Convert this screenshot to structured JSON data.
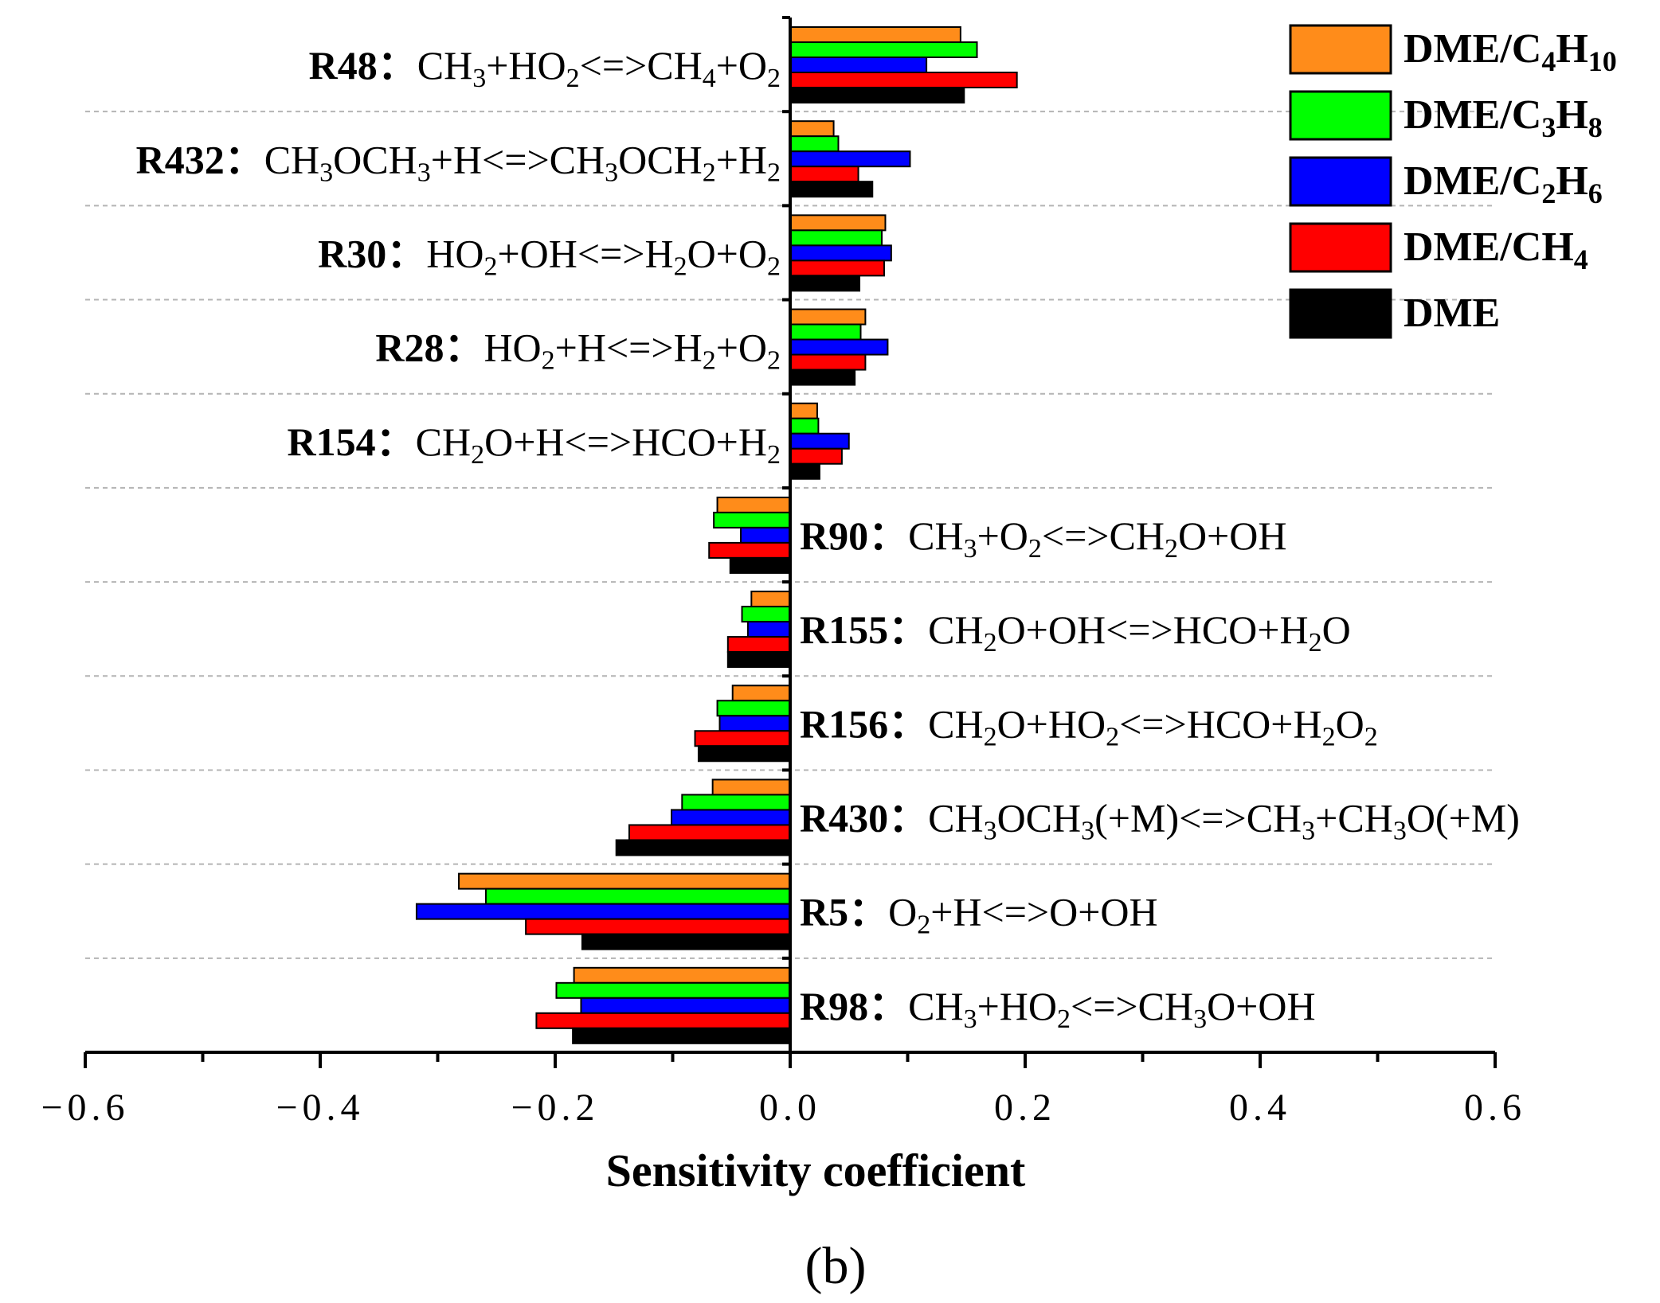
{
  "chart_data": {
    "type": "bar",
    "orientation": "horizontal",
    "xlabel": "Sensitivity coefficient",
    "caption": "(b)",
    "xlim": [
      -0.6,
      0.6
    ],
    "xticks": [
      -0.6,
      -0.4,
      -0.2,
      0.0,
      0.2,
      0.4,
      0.6
    ],
    "xtick_labels": [
      "−0.6",
      "−0.4",
      "−0.2",
      "0.0",
      "0.2",
      "0.4",
      "0.6"
    ],
    "grid": "horizontal dashed separators",
    "legend_position": "top-right",
    "categories": [
      {
        "id": "R48",
        "name": "R48",
        "sep": "：",
        "side": "left",
        "parts": [
          [
            "CH",
            ""
          ],
          [
            "3",
            "sub"
          ],
          [
            "+HO",
            ""
          ],
          [
            "2",
            "sub"
          ],
          [
            "<=>CH",
            ""
          ],
          [
            "4",
            "sub"
          ],
          [
            "+O",
            ""
          ],
          [
            "2",
            "sub"
          ]
        ]
      },
      {
        "id": "R432",
        "name": "R432",
        "sep": "：",
        "side": "left",
        "parts": [
          [
            "CH",
            ""
          ],
          [
            "3",
            "sub"
          ],
          [
            "OCH",
            ""
          ],
          [
            "3",
            "sub"
          ],
          [
            "+H<=>CH",
            ""
          ],
          [
            "3",
            "sub"
          ],
          [
            "OCH",
            ""
          ],
          [
            "2",
            "sub"
          ],
          [
            "+H",
            ""
          ],
          [
            "2",
            "sub"
          ]
        ]
      },
      {
        "id": "R30",
        "name": "R30",
        "sep": "：",
        "side": "left",
        "parts": [
          [
            "HO",
            ""
          ],
          [
            "2",
            "sub"
          ],
          [
            "+OH<=>H",
            ""
          ],
          [
            "2",
            "sub"
          ],
          [
            "O+O",
            ""
          ],
          [
            "2",
            "sub"
          ]
        ]
      },
      {
        "id": "R28",
        "name": "R28",
        "sep": "：",
        "side": "left",
        "parts": [
          [
            "HO",
            ""
          ],
          [
            "2",
            "sub"
          ],
          [
            "+H<=>H",
            ""
          ],
          [
            "2",
            "sub"
          ],
          [
            "+O",
            ""
          ],
          [
            "2",
            "sub"
          ]
        ]
      },
      {
        "id": "R154",
        "name": "R154",
        "sep": "：",
        "side": "left",
        "parts": [
          [
            "CH",
            ""
          ],
          [
            "2",
            "sub"
          ],
          [
            "O+H<=>HCO+H",
            ""
          ],
          [
            "2",
            "sub"
          ]
        ]
      },
      {
        "id": "R90",
        "name": "R90",
        "sep": "：",
        "side": "right",
        "parts": [
          [
            "CH",
            ""
          ],
          [
            "3",
            "sub"
          ],
          [
            "+O",
            ""
          ],
          [
            "2",
            "sub"
          ],
          [
            "<=>CH",
            ""
          ],
          [
            "2",
            "sub"
          ],
          [
            "O+OH",
            ""
          ]
        ]
      },
      {
        "id": "R155",
        "name": "R155",
        "sep": "：",
        "side": "right",
        "parts": [
          [
            "CH",
            ""
          ],
          [
            "2",
            "sub"
          ],
          [
            "O+OH<=>HCO+H",
            ""
          ],
          [
            "2",
            "sub"
          ],
          [
            "O",
            ""
          ]
        ]
      },
      {
        "id": "R156",
        "name": "R156",
        "sep": "：",
        "side": "right",
        "parts": [
          [
            "CH",
            ""
          ],
          [
            "2",
            "sub"
          ],
          [
            "O+HO",
            ""
          ],
          [
            "2",
            "sub"
          ],
          [
            "<=>HCO+H",
            ""
          ],
          [
            "2",
            "sub"
          ],
          [
            "O",
            ""
          ],
          [
            "2",
            "sub"
          ]
        ]
      },
      {
        "id": "R430",
        "name": "R430",
        "sep": "：",
        "side": "right",
        "parts": [
          [
            "CH",
            ""
          ],
          [
            "3",
            "sub"
          ],
          [
            "OCH",
            ""
          ],
          [
            "3",
            "sub"
          ],
          [
            "(+M)<=>CH",
            ""
          ],
          [
            "3",
            "sub"
          ],
          [
            "+CH",
            ""
          ],
          [
            "3",
            "sub"
          ],
          [
            "O(+M)",
            ""
          ]
        ]
      },
      {
        "id": "R5",
        "name": "R5",
        "sep": "：",
        "side": "right",
        "parts": [
          [
            "O",
            ""
          ],
          [
            "2",
            "sub"
          ],
          [
            "+H<=>O+OH",
            ""
          ]
        ]
      },
      {
        "id": "R98",
        "name": "R98",
        "sep": "：",
        "side": "right",
        "parts": [
          [
            "CH",
            ""
          ],
          [
            "3",
            "sub"
          ],
          [
            "+HO",
            ""
          ],
          [
            "2",
            "sub"
          ],
          [
            "<=>CH",
            ""
          ],
          [
            "3",
            "sub"
          ],
          [
            "O+OH",
            ""
          ]
        ]
      }
    ],
    "series": [
      {
        "name": "DME/C4H10",
        "legend_parts": [
          [
            "DME/C",
            ""
          ],
          [
            "4",
            "sub"
          ],
          [
            "H",
            ""
          ],
          [
            "10",
            "sub"
          ]
        ],
        "color": "#FF8C1A",
        "values": [
          0.145,
          0.037,
          0.081,
          0.064,
          0.023,
          -0.062,
          -0.033,
          -0.049,
          -0.066,
          -0.282,
          -0.184
        ]
      },
      {
        "name": "DME/C3H8",
        "legend_parts": [
          [
            "DME/C",
            ""
          ],
          [
            "3",
            "sub"
          ],
          [
            "H",
            ""
          ],
          [
            "8",
            "sub"
          ]
        ],
        "color": "#00FF00",
        "values": [
          0.159,
          0.041,
          0.078,
          0.06,
          0.024,
          -0.065,
          -0.041,
          -0.062,
          -0.092,
          -0.259,
          -0.199
        ]
      },
      {
        "name": "DME/C2H6",
        "legend_parts": [
          [
            "DME/C",
            ""
          ],
          [
            "2",
            "sub"
          ],
          [
            "H",
            ""
          ],
          [
            "6",
            "sub"
          ]
        ],
        "color": "#0000FF",
        "values": [
          0.116,
          0.102,
          0.086,
          0.083,
          0.05,
          -0.042,
          -0.036,
          -0.06,
          -0.101,
          -0.318,
          -0.178
        ]
      },
      {
        "name": "DME/CH4",
        "legend_parts": [
          [
            "DME/CH",
            ""
          ],
          [
            "4",
            "sub"
          ]
        ],
        "color": "#FF0000",
        "values": [
          0.193,
          0.058,
          0.08,
          0.064,
          0.044,
          -0.069,
          -0.053,
          -0.081,
          -0.137,
          -0.225,
          -0.216
        ]
      },
      {
        "name": "DME",
        "legend_parts": [
          [
            "DME",
            ""
          ]
        ],
        "color": "#000000",
        "values": [
          0.148,
          0.07,
          0.059,
          0.055,
          0.025,
          -0.051,
          -0.053,
          -0.078,
          -0.148,
          -0.177,
          -0.185
        ]
      }
    ]
  }
}
